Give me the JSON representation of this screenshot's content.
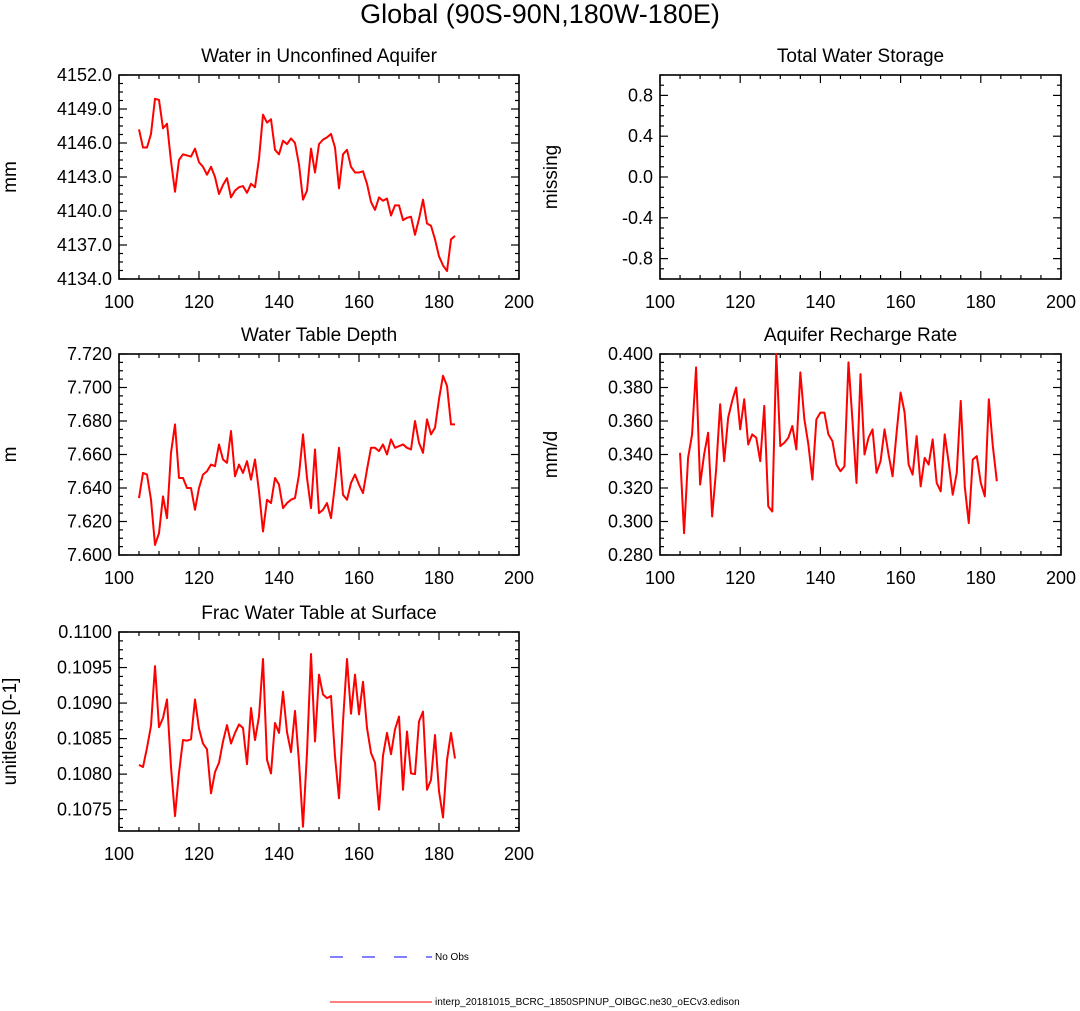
{
  "title": "Global (90S-90N,180W-180E)",
  "series_color": "#ff0000",
  "obs_color": "#0000ff",
  "legend": {
    "obs_label": "No Obs",
    "model_label": "interp_20181015_BCRC_1850SPINUP_OIBGC.ne30_oECv3.edison"
  },
  "chart_data": [
    {
      "type": "line",
      "title": "Water in Unconfined Aquifer",
      "ylabel": "mm",
      "xlim": [
        100,
        200
      ],
      "ylim": [
        4134.0,
        4152.0
      ],
      "xticks": [
        100,
        120,
        140,
        160,
        180,
        200
      ],
      "yticks": [
        4134.0,
        4137.0,
        4140.0,
        4143.0,
        4146.0,
        4149.0,
        4152.0
      ],
      "ytick_labels": [
        "4134.0",
        "4137.0",
        "4140.0",
        "4143.0",
        "4146.0",
        "4149.0",
        "4152.0"
      ],
      "x_start": 105,
      "values": [
        4147.2,
        4145.6,
        4145.6,
        4146.8,
        4149.9,
        4149.8,
        4147.3,
        4147.7,
        4144.4,
        4141.7,
        4144.5,
        4145.0,
        4144.9,
        4144.8,
        4145.5,
        4144.3,
        4143.9,
        4143.2,
        4143.9,
        4143.0,
        4141.5,
        4142.3,
        4142.9,
        4141.2,
        4141.8,
        4142.1,
        4142.2,
        4141.6,
        4142.4,
        4142.1,
        4144.6,
        4148.5,
        4147.8,
        4148.1,
        4145.4,
        4145.0,
        4146.2,
        4145.9,
        4146.4,
        4146.0,
        4144.1,
        4141.0,
        4141.8,
        4145.5,
        4143.4,
        4145.9,
        4146.3,
        4146.5,
        4146.8,
        4145.6,
        4142.0,
        4145.0,
        4145.4,
        4143.9,
        4143.4,
        4143.4,
        4143.5,
        4142.4,
        4140.8,
        4140.1,
        4141.2,
        4140.9,
        4141.1,
        4139.6,
        4140.5,
        4140.5,
        4139.2,
        4139.4,
        4139.5,
        4137.9,
        4139.3,
        4141.0,
        4138.9,
        4138.7,
        4137.5,
        4136.0,
        4135.2,
        4134.7,
        4137.5,
        4137.8
      ]
    },
    {
      "type": "line",
      "title": "Total Water Storage",
      "ylabel": "missing",
      "xlim": [
        100,
        200
      ],
      "ylim": [
        -1.0,
        1.0
      ],
      "xticks": [
        100,
        120,
        140,
        160,
        180,
        200
      ],
      "yticks": [
        -0.8,
        -0.4,
        0.0,
        0.4,
        0.8
      ],
      "ytick_labels": [
        "-0.8",
        "-0.4",
        "0.0",
        "0.4",
        "0.8"
      ],
      "x_start": 105,
      "values": []
    },
    {
      "type": "line",
      "title": "Water Table Depth",
      "ylabel": "m",
      "xlim": [
        100,
        200
      ],
      "ylim": [
        7.6,
        7.72
      ],
      "xticks": [
        100,
        120,
        140,
        160,
        180,
        200
      ],
      "yticks": [
        7.6,
        7.62,
        7.64,
        7.66,
        7.68,
        7.7,
        7.72
      ],
      "ytick_labels": [
        "7.600",
        "7.620",
        "7.640",
        "7.660",
        "7.680",
        "7.700",
        "7.720"
      ],
      "x_start": 105,
      "values": [
        7.634,
        7.649,
        7.648,
        7.633,
        7.606,
        7.613,
        7.635,
        7.622,
        7.661,
        7.678,
        7.646,
        7.646,
        7.64,
        7.64,
        7.627,
        7.64,
        7.648,
        7.65,
        7.654,
        7.653,
        7.666,
        7.657,
        7.655,
        7.674,
        7.647,
        7.654,
        7.649,
        7.656,
        7.645,
        7.657,
        7.638,
        7.614,
        7.633,
        7.631,
        7.646,
        7.642,
        7.628,
        7.631,
        7.633,
        7.634,
        7.648,
        7.672,
        7.646,
        7.628,
        7.663,
        7.625,
        7.627,
        7.631,
        7.622,
        7.642,
        7.664,
        7.636,
        7.633,
        7.643,
        7.648,
        7.642,
        7.637,
        7.651,
        7.664,
        7.664,
        7.662,
        7.666,
        7.66,
        7.669,
        7.664,
        7.665,
        7.666,
        7.664,
        7.663,
        7.68,
        7.667,
        7.661,
        7.681,
        7.672,
        7.676,
        7.693,
        7.707,
        7.701,
        7.678,
        7.678
      ]
    },
    {
      "type": "line",
      "title": "Aquifer Recharge Rate",
      "ylabel": "mm/d",
      "xlim": [
        100,
        200
      ],
      "ylim": [
        0.28,
        0.4
      ],
      "xticks": [
        100,
        120,
        140,
        160,
        180,
        200
      ],
      "yticks": [
        0.28,
        0.3,
        0.32,
        0.34,
        0.36,
        0.38,
        0.4
      ],
      "ytick_labels": [
        "0.280",
        "0.300",
        "0.320",
        "0.340",
        "0.360",
        "0.380",
        "0.400"
      ],
      "x_start": 105,
      "values": [
        0.341,
        0.293,
        0.338,
        0.352,
        0.392,
        0.322,
        0.34,
        0.353,
        0.303,
        0.331,
        0.37,
        0.336,
        0.362,
        0.372,
        0.38,
        0.355,
        0.373,
        0.346,
        0.352,
        0.35,
        0.336,
        0.369,
        0.309,
        0.306,
        0.4,
        0.345,
        0.347,
        0.35,
        0.357,
        0.343,
        0.389,
        0.361,
        0.346,
        0.325,
        0.361,
        0.365,
        0.365,
        0.352,
        0.348,
        0.334,
        0.33,
        0.333,
        0.395,
        0.36,
        0.323,
        0.388,
        0.34,
        0.35,
        0.355,
        0.329,
        0.336,
        0.355,
        0.34,
        0.327,
        0.353,
        0.377,
        0.365,
        0.334,
        0.328,
        0.351,
        0.321,
        0.338,
        0.334,
        0.349,
        0.323,
        0.318,
        0.352,
        0.335,
        0.316,
        0.329,
        0.372,
        0.321,
        0.299,
        0.337,
        0.339,
        0.323,
        0.315,
        0.373,
        0.345,
        0.324
      ]
    },
    {
      "type": "line",
      "title": "Frac Water Table at Surface",
      "ylabel": "unitless [0-1]",
      "xlim": [
        100,
        200
      ],
      "ylim": [
        0.1072,
        0.11
      ],
      "xticks": [
        100,
        120,
        140,
        160,
        180,
        200
      ],
      "yticks": [
        0.1075,
        0.108,
        0.1085,
        0.109,
        0.1095,
        0.11
      ],
      "ytick_labels": [
        "0.1075",
        "0.1080",
        "0.1085",
        "0.1090",
        "0.1095",
        "0.1100"
      ],
      "x_start": 105,
      "values": [
        0.10813,
        0.1081,
        0.10837,
        0.10868,
        0.10952,
        0.10866,
        0.10879,
        0.10905,
        0.1081,
        0.10741,
        0.10802,
        0.10848,
        0.10847,
        0.10849,
        0.10905,
        0.10864,
        0.10843,
        0.10835,
        0.10773,
        0.10803,
        0.10816,
        0.10846,
        0.10869,
        0.10843,
        0.10858,
        0.1087,
        0.10865,
        0.10814,
        0.10893,
        0.10848,
        0.10881,
        0.10962,
        0.1082,
        0.10801,
        0.10872,
        0.10858,
        0.10916,
        0.10859,
        0.10831,
        0.10889,
        0.10817,
        0.10726,
        0.1083,
        0.10969,
        0.10846,
        0.1094,
        0.10912,
        0.10907,
        0.1091,
        0.10825,
        0.10766,
        0.10874,
        0.10962,
        0.10885,
        0.1094,
        0.10884,
        0.1093,
        0.10865,
        0.1083,
        0.10816,
        0.1075,
        0.10826,
        0.10858,
        0.10828,
        0.10863,
        0.10881,
        0.10778,
        0.1086,
        0.10801,
        0.108,
        0.10874,
        0.10888,
        0.10778,
        0.10792,
        0.10855,
        0.10776,
        0.10739,
        0.1082,
        0.10858,
        0.10822
      ]
    }
  ]
}
